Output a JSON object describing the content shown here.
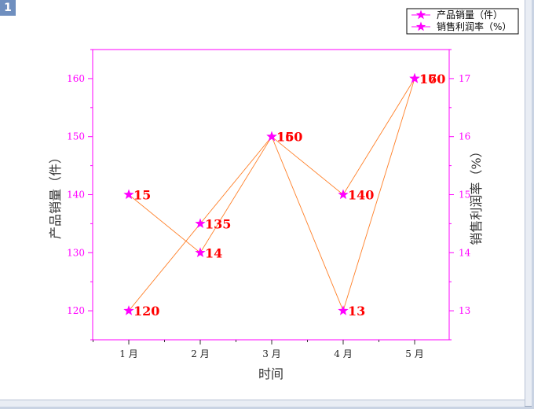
{
  "page": {
    "badge": "1"
  },
  "chart_data": {
    "type": "line",
    "categories": [
      "1 月",
      "2 月",
      "3 月",
      "4 月",
      "5 月"
    ],
    "xlabel": "时间",
    "ylabel": "产品销量（件）",
    "y2label": "销售利润率（%）",
    "ylim": [
      115,
      165
    ],
    "y2lim": [
      12.5,
      17.5
    ],
    "yticks": [
      120,
      130,
      140,
      150,
      160
    ],
    "y2ticks": [
      13,
      14,
      15,
      16,
      17
    ],
    "grid": false,
    "legend": "top-right",
    "series": [
      {
        "name": "产品销量（件）",
        "axis": "left",
        "values": [
          120,
          135,
          150,
          140,
          160
        ]
      },
      {
        "name": "销售利润率（%）",
        "axis": "right",
        "values": [
          15,
          14,
          16,
          13,
          17
        ]
      }
    ],
    "colors": {
      "marker": "#ff00ff",
      "line": "#ff7f27",
      "label": "#ff0000",
      "axis": "#ff00ff",
      "tick_text": "#ff00ff"
    }
  }
}
